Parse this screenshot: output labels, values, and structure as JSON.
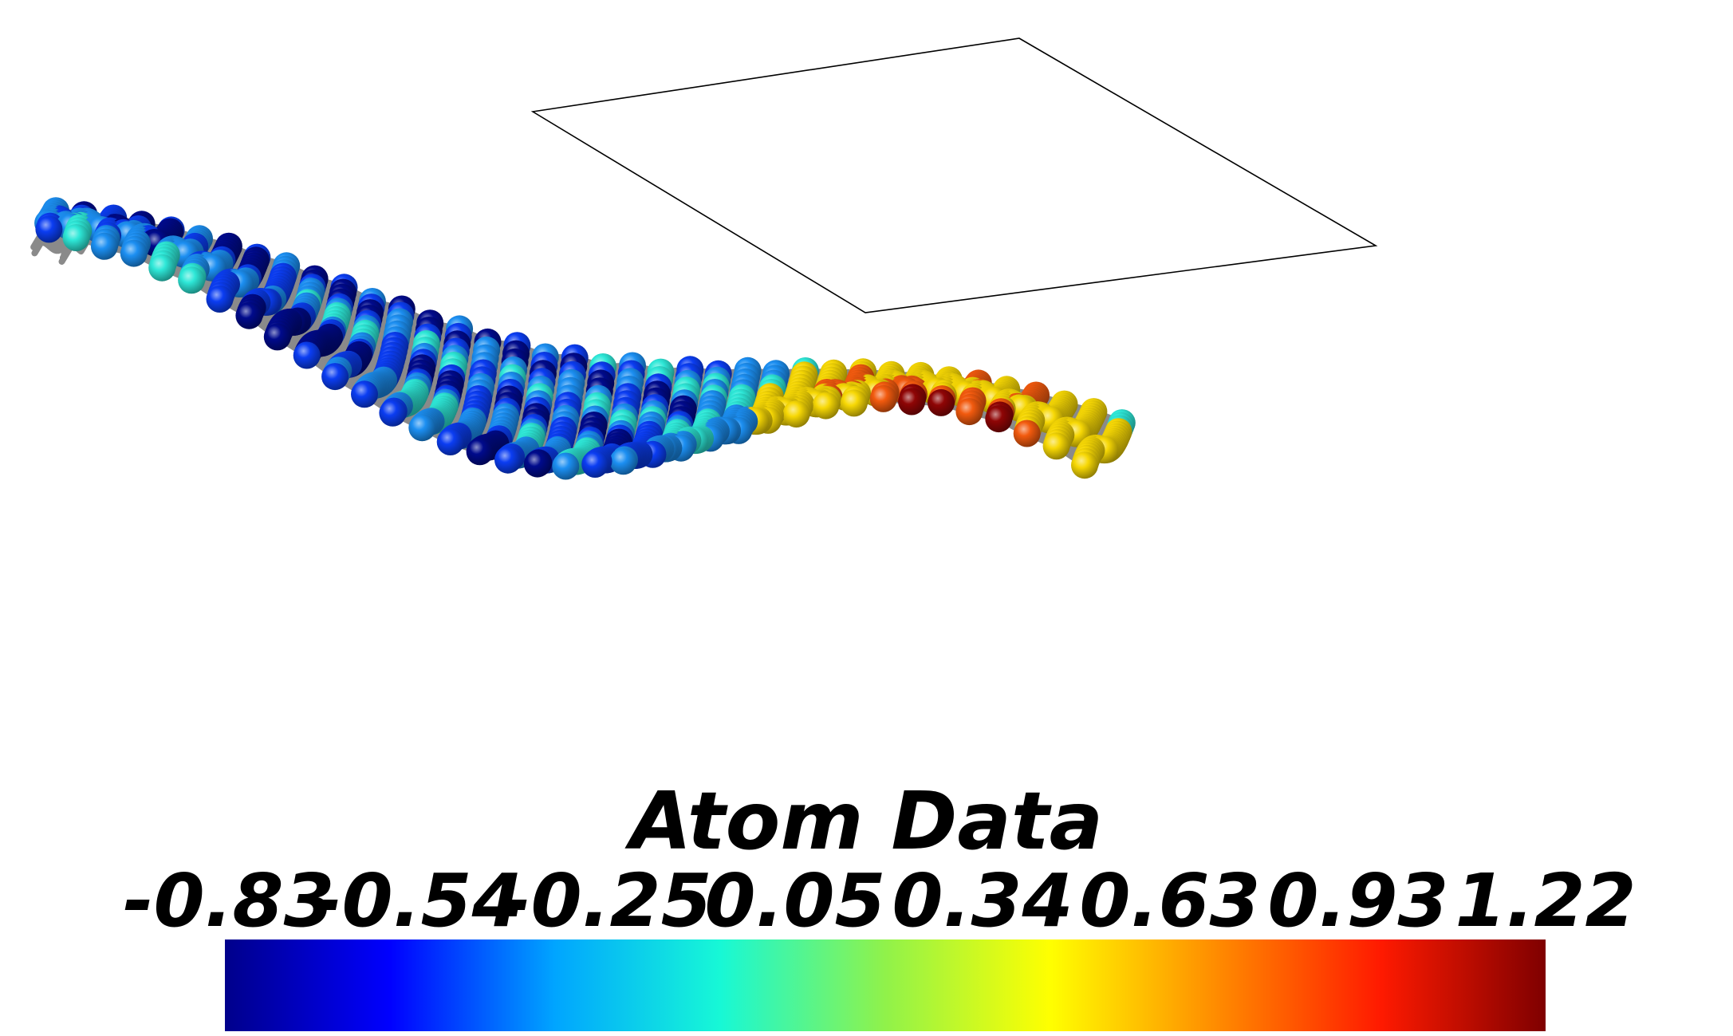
{
  "legend": {
    "title": "Atom Data",
    "ticks": [
      "-0.83",
      "-0.54",
      "-0.25",
      "0.05",
      "0.34",
      "0.63",
      "0.93",
      "1.22"
    ],
    "range": [
      -0.83,
      1.22
    ],
    "colormap": [
      "#00008b",
      "#0000ff",
      "#00a5ff",
      "#17f8d6",
      "#90f24a",
      "#ffff00",
      "#ff8c00",
      "#ff1a00",
      "#7f0000"
    ]
  },
  "structure": {
    "type": "hexagonal atomic monolayer in perspective",
    "sphere_colors": {
      "dark-blue": "#000a8c",
      "blue": "#0b3df2",
      "sky-blue": "#1c8ff2",
      "cyan": "#2ee8d8",
      "yellow": "#f7d805",
      "orange": "#f25a0e",
      "dark-red": "#8f0505"
    },
    "bond_color": "#8a8a8a",
    "cell_outline_color": "#000000"
  }
}
